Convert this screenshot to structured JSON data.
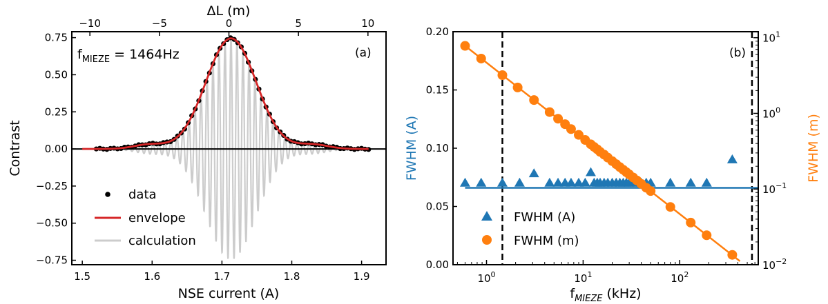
{
  "chart_data": [
    {
      "type": "line",
      "panel_label": "(a)",
      "annotation_main": "f",
      "annotation_sub": "MIEZE",
      "annotation_rest": " = 1464Hz",
      "xlabel": "NSE current (A)",
      "x2label": "ΔL (m)",
      "ylabel": "Contrast",
      "xlim": [
        1.485,
        1.935
      ],
      "ylim": [
        -0.78,
        0.79
      ],
      "x2lim": [
        -11.3,
        11.3
      ],
      "x_ticks": [
        1.5,
        1.6,
        1.7,
        1.8,
        1.9
      ],
      "x_tick_labels": [
        "1.5",
        "1.6",
        "1.7",
        "1.8",
        "1.9"
      ],
      "x2_ticks": [
        -10,
        -5,
        0,
        5,
        10
      ],
      "x2_tick_labels": [
        "−10",
        "−5",
        "0",
        "5",
        "10"
      ],
      "y_ticks": [
        -0.75,
        -0.5,
        -0.25,
        0.0,
        0.25,
        0.5,
        0.75
      ],
      "y_tick_labels": [
        "−0.75",
        "−0.50",
        "−0.25",
        "0.00",
        "0.25",
        "0.50",
        "0.75"
      ],
      "envelope": {
        "amplitude": 0.745,
        "center": 1.713,
        "sigma": 0.036,
        "side_amplitude": 0.03,
        "side_offset": 0.117,
        "side_sigma": 0.022,
        "x_range": [
          1.5,
          1.91
        ]
      },
      "calculation": {
        "amplitude": 0.745,
        "center": 1.713,
        "sigma": 0.036,
        "period": 0.0086,
        "x_range": [
          1.5,
          1.91
        ]
      },
      "data_points": {
        "x_range": [
          1.52,
          1.91
        ],
        "count": 78
      },
      "legend": [
        {
          "label": "data",
          "color": "#000000"
        },
        {
          "label": "envelope",
          "color": "#d62728"
        },
        {
          "label": "calculation",
          "color": "#cccccc"
        }
      ],
      "legend_position": "lower-left",
      "grid": false
    },
    {
      "type": "scatter",
      "panel_label": "(b)",
      "xlabel_main": "f",
      "xlabel_sub": "MIEZE",
      "xlabel_rest": " (kHz)",
      "ylabel": "FWHM (A)",
      "y2label": "FWHM (m)",
      "x_scale": "log",
      "xlim": [
        0.45,
        650
      ],
      "ylim": [
        0.0,
        0.2
      ],
      "y2_scale": "log",
      "y2lim": [
        0.01,
        12
      ],
      "x_ticks": [
        1,
        10,
        100
      ],
      "x_tick_labels": [
        {
          "base": "10",
          "exp": "0"
        },
        {
          "base": "10",
          "exp": "1"
        },
        {
          "base": "10",
          "exp": "2"
        }
      ],
      "y_ticks": [
        0.0,
        0.05,
        0.1,
        0.15,
        0.2
      ],
      "y_tick_labels": [
        "0.00",
        "0.05",
        "0.10",
        "0.15",
        "0.20"
      ],
      "y2_ticks": [
        0.01,
        0.1,
        1,
        10
      ],
      "y2_tick_labels": [
        {
          "base": "10",
          "exp": "−2"
        },
        {
          "base": "10",
          "exp": "−1"
        },
        {
          "base": "10",
          "exp": "0"
        },
        {
          "base": "10",
          "exp": "1"
        }
      ],
      "vlines": [
        1.46,
        560
      ],
      "series": [
        {
          "name": "FWHM (A)",
          "axis": "left",
          "marker": "triangle",
          "color": "#1f77b4",
          "x": [
            0.6,
            0.88,
            1.46,
            2.2,
            3.1,
            4.5,
            5.5,
            6.5,
            7.5,
            9,
            10.5,
            12,
            13,
            14,
            15,
            16.5,
            18,
            20,
            22,
            24,
            26,
            28,
            30,
            33,
            36,
            40,
            45,
            50,
            80,
            130,
            190,
            350
          ],
          "values": [
            0.07,
            0.07,
            0.07,
            0.07,
            0.078,
            0.07,
            0.07,
            0.07,
            0.07,
            0.07,
            0.07,
            0.079,
            0.07,
            0.07,
            0.07,
            0.07,
            0.07,
            0.07,
            0.07,
            0.07,
            0.07,
            0.07,
            0.07,
            0.07,
            0.07,
            0.07,
            0.07,
            0.07,
            0.07,
            0.07,
            0.07,
            0.09
          ],
          "fit_value": 0.066
        },
        {
          "name": "FWHM (m)",
          "axis": "right",
          "marker": "circle",
          "color": "#ff7f0e",
          "x": [
            0.6,
            0.88,
            1.46,
            2.1,
            3.1,
            4.5,
            5.5,
            6.5,
            7.5,
            9,
            10.5,
            12,
            13,
            14,
            15,
            16.5,
            18,
            20,
            22,
            24,
            26,
            28,
            30,
            33,
            36,
            40,
            45,
            50,
            80,
            130,
            190,
            350
          ],
          "values": [
            7.8,
            5.3,
            3.2,
            2.2,
            1.5,
            1.04,
            0.85,
            0.72,
            0.62,
            0.52,
            0.445,
            0.39,
            0.36,
            0.335,
            0.31,
            0.285,
            0.26,
            0.234,
            0.213,
            0.195,
            0.18,
            0.167,
            0.156,
            0.142,
            0.13,
            0.117,
            0.104,
            0.094,
            0.058,
            0.036,
            0.0245,
            0.0135
          ],
          "fit_k": 4.68,
          "fit_range": [
            0.6,
            420
          ]
        }
      ],
      "legend_position": "lower-left",
      "grid": false
    }
  ]
}
